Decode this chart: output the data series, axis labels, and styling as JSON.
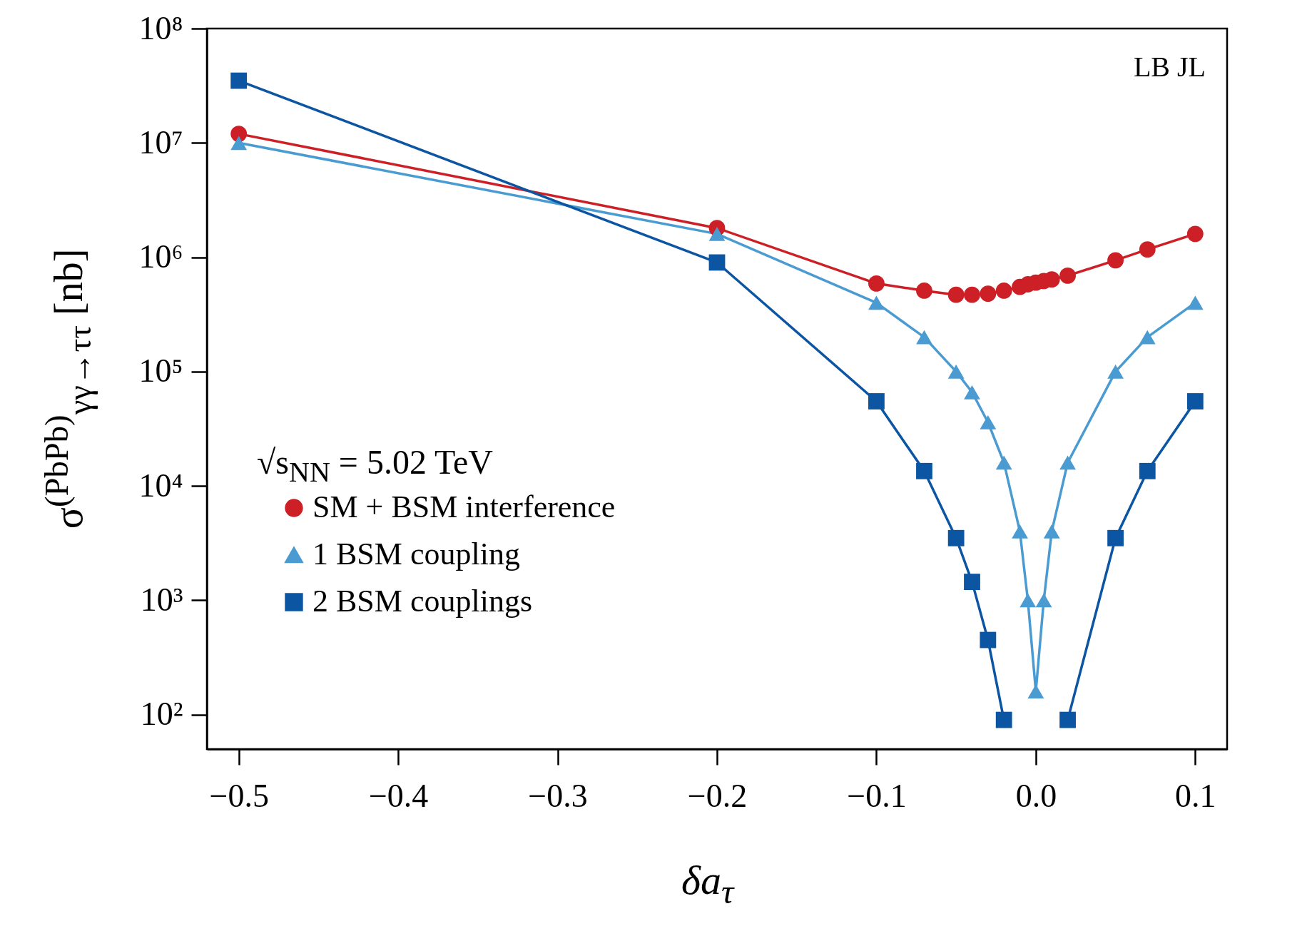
{
  "chart_data": {
    "type": "line",
    "xlabel": "δa$_{τ}$",
    "ylabel": "σ$^{(PbPb)}$$_{γγ→ττ}$ [nb]",
    "x": [
      -0.5,
      -0.2,
      -0.1,
      -0.07,
      -0.05,
      -0.04,
      -0.03,
      -0.02,
      -0.01,
      -0.005,
      0,
      0.005,
      0.01,
      0.02,
      0.05,
      0.07,
      0.1
    ],
    "series": [
      {
        "name": "SM + BSM interference",
        "color": "#cc1f26",
        "marker": "circle",
        "values": [
          12000000,
          1800000,
          590000,
          510000,
          470000,
          470000,
          480000,
          510000,
          550000,
          580000,
          600000,
          620000,
          640000,
          690000,
          940000,
          1170000,
          1600000
        ]
      },
      {
        "name": "1 BSM coupling",
        "color": "#4a9bd1",
        "marker": "triangle",
        "values": [
          10000000,
          1600000,
          400000,
          200000,
          100000,
          66000,
          36000,
          16000,
          4000,
          1000,
          160,
          1000,
          4000,
          16000,
          100000,
          200000,
          400000
        ]
      },
      {
        "name": "2 BSM couplings",
        "color": "#0b55a3",
        "marker": "square",
        "values": [
          35000000,
          900000,
          55000,
          13500,
          3500,
          1450,
          450,
          90,
          null,
          null,
          null,
          null,
          null,
          90,
          3500,
          13500,
          55000
        ]
      }
    ],
    "log": "y",
    "xlim": [
      -0.52,
      0.12
    ],
    "ylim": [
      50,
      100000000
    ],
    "xticks": [
      {
        "value": -0.5,
        "label": "−0.5"
      },
      {
        "value": -0.4,
        "label": "−0.4"
      },
      {
        "value": -0.3,
        "label": "−0.3"
      },
      {
        "value": -0.2,
        "label": "−0.2"
      },
      {
        "value": -0.1,
        "label": "−0.1"
      },
      {
        "value": 0,
        "label": "0.0"
      },
      0.1
    ],
    "yticks": [
      {
        "value": 100,
        "label": "10²"
      },
      {
        "value": 1000,
        "label": "10³"
      },
      {
        "value": 10000,
        "label": "10⁴"
      },
      {
        "value": 100000,
        "label": "10⁵"
      },
      {
        "value": 1000000,
        "label": "10⁶"
      },
      {
        "value": 10000000,
        "label": "10⁷"
      },
      {
        "value": 100000000,
        "label": "10⁸"
      }
    ],
    "grid": false,
    "legend": "bottom left",
    "annotations": [
      "LB JL",
      "√s$_{NN}$ = 5.02 TeV"
    ]
  }
}
